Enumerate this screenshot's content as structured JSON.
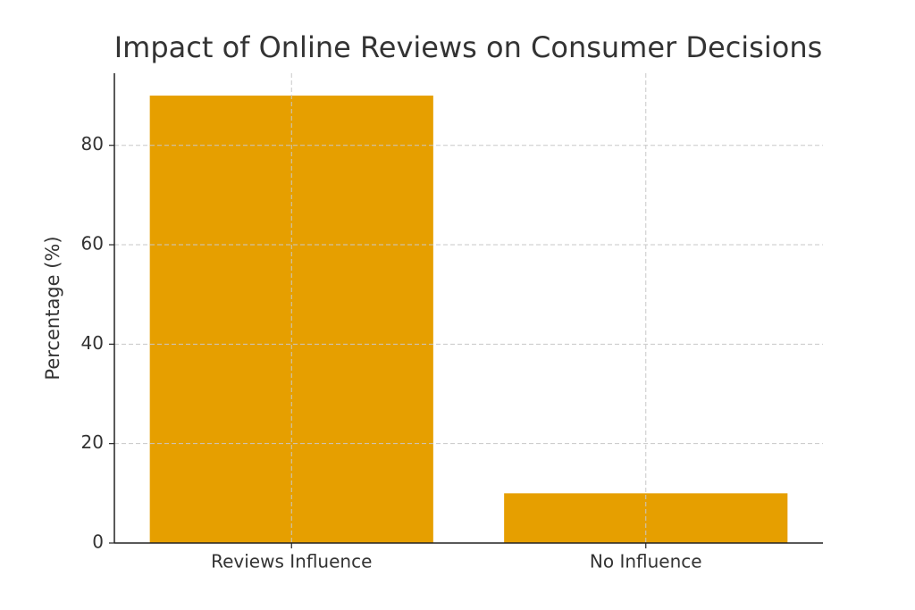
{
  "chart_data": {
    "type": "bar",
    "title": "Impact of Online Reviews on Consumer Decisions",
    "y_label": "Percentage (%)",
    "categories": [
      "Reviews Influence",
      "No Influence"
    ],
    "values": [
      90,
      10
    ],
    "color": "#e69f00",
    "ylim": [
      0,
      94.5
    ],
    "yticks": [
      0,
      20,
      40,
      60,
      80
    ],
    "grid": true
  }
}
